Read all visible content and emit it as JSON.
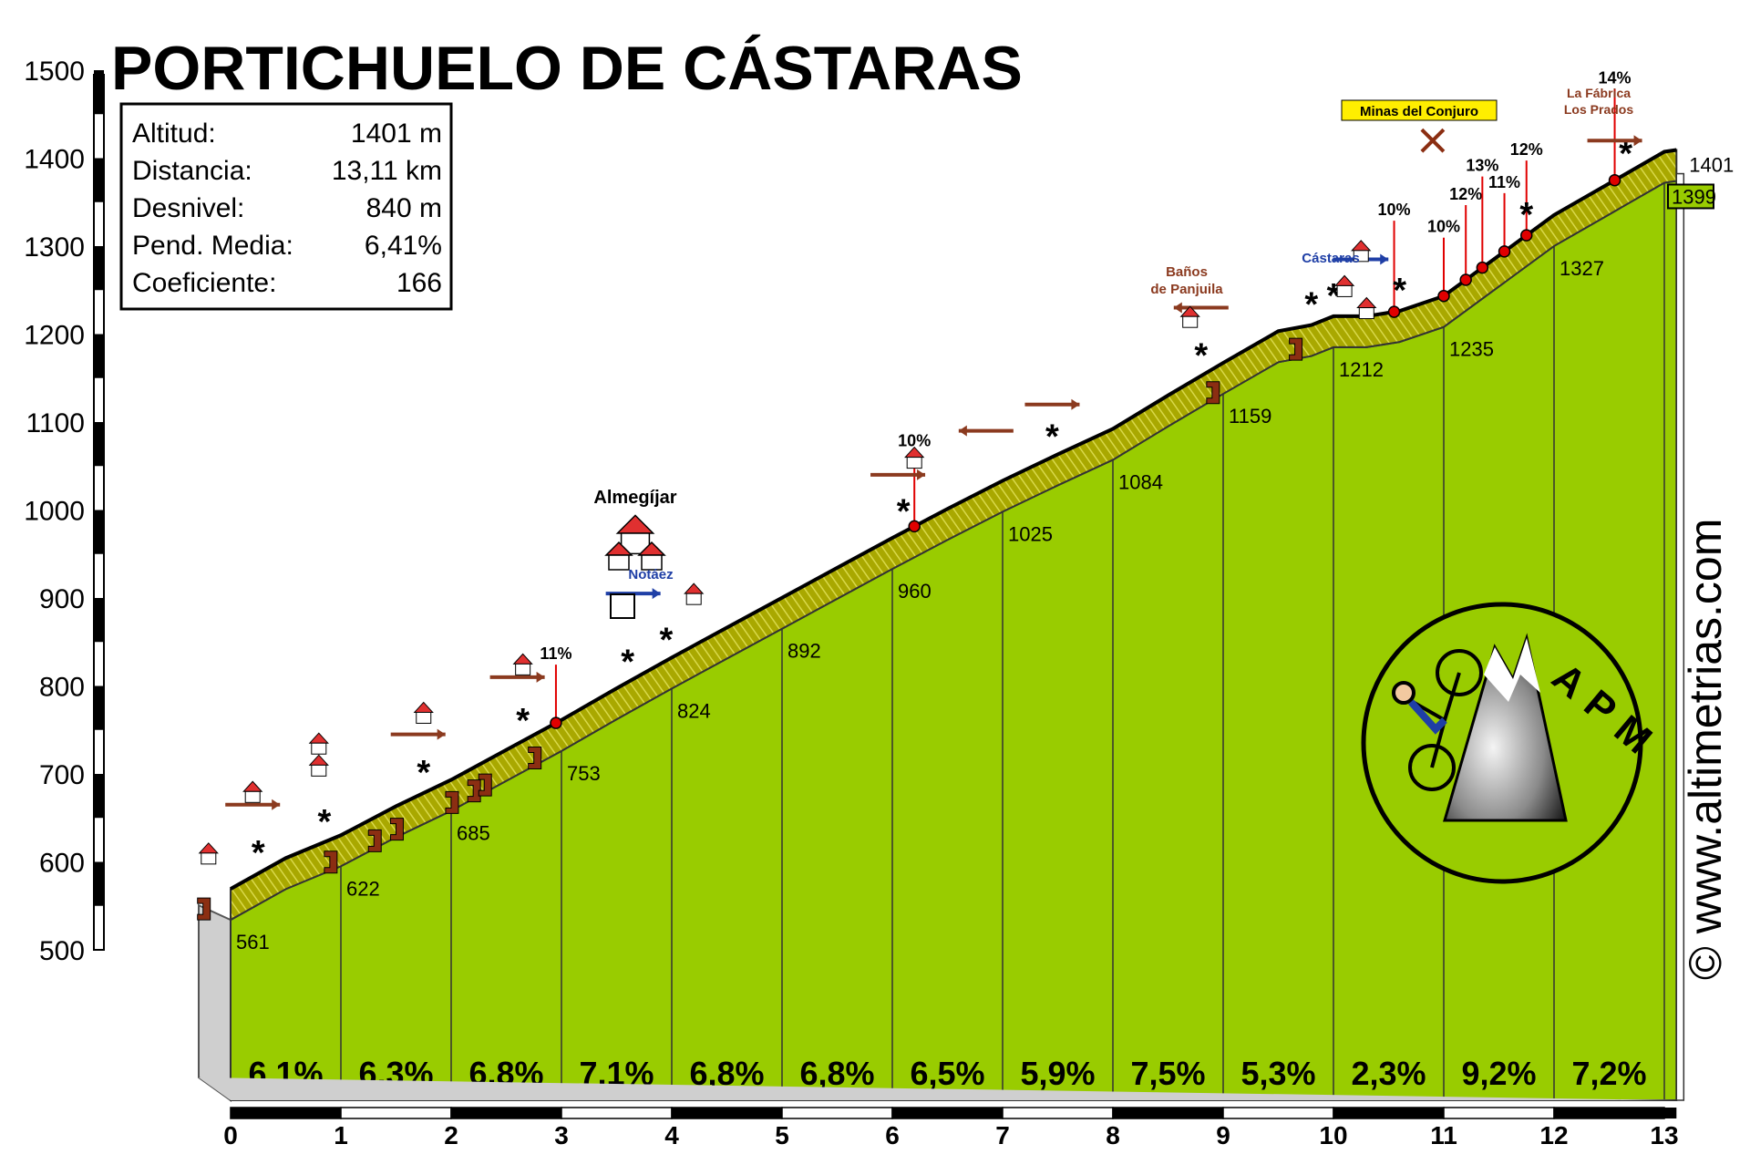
{
  "title": "PORTICHUELO DE CÁSTARAS",
  "watermark": "© www.altimetrias.com",
  "logo_text": "APM",
  "colors": {
    "fill": "#99cc00",
    "road": "#9c9c00",
    "road_light": "#dede00",
    "marker": "#8b2e12",
    "red": "#e00000",
    "arrow_brown": "#8b3a1f",
    "arrow_blue": "#1f3fa6",
    "arrow_grey": "#888888"
  },
  "stats": [
    {
      "label": "Altitud:",
      "value": "1401 m"
    },
    {
      "label": "Distancia:",
      "value": "13,11 km"
    },
    {
      "label": "Desnivel:",
      "value": "840 m"
    },
    {
      "label": "Pend. Media:",
      "value": "6,41%"
    },
    {
      "label": "Coeficiente:",
      "value": "166"
    }
  ],
  "places": [
    {
      "name": "Almegíjar",
      "km": 3.65
    },
    {
      "name": "Notáez",
      "km": 3.8
    },
    {
      "name": "Baños de Panjuila",
      "km": 8.8
    },
    {
      "name": "Cástaras",
      "km": 10.25
    },
    {
      "name": "Minas del Conjuro",
      "km": 11.4
    },
    {
      "name": "La Fábrica",
      "km": 12.6
    },
    {
      "name": "Los Prados",
      "km": 12.6
    }
  ],
  "chart_data": {
    "type": "area",
    "xlabel": "",
    "ylabel": "",
    "xlim": [
      0,
      13.11
    ],
    "ylim": [
      500,
      1500
    ],
    "x_ticks": [
      "0",
      "1",
      "2",
      "3",
      "4",
      "5",
      "6",
      "7",
      "8",
      "9",
      "10",
      "11",
      "12",
      "13"
    ],
    "y_ticks": [
      "500",
      "600",
      "700",
      "800",
      "900",
      "1000",
      "1100",
      "1200",
      "1300",
      "1400",
      "1500"
    ],
    "profile": [
      {
        "km": 0,
        "alt": 561
      },
      {
        "km": 0.5,
        "alt": 596
      },
      {
        "km": 1,
        "alt": 622
      },
      {
        "km": 1.5,
        "alt": 655
      },
      {
        "km": 2,
        "alt": 685
      },
      {
        "km": 2.5,
        "alt": 719
      },
      {
        "km": 3,
        "alt": 753
      },
      {
        "km": 3.5,
        "alt": 789
      },
      {
        "km": 4,
        "alt": 824
      },
      {
        "km": 4.5,
        "alt": 858
      },
      {
        "km": 5,
        "alt": 892
      },
      {
        "km": 5.5,
        "alt": 926
      },
      {
        "km": 6,
        "alt": 960
      },
      {
        "km": 6.5,
        "alt": 993
      },
      {
        "km": 7,
        "alt": 1025
      },
      {
        "km": 7.5,
        "alt": 1055
      },
      {
        "km": 8,
        "alt": 1084
      },
      {
        "km": 8.5,
        "alt": 1122
      },
      {
        "km": 9,
        "alt": 1159
      },
      {
        "km": 9.5,
        "alt": 1195
      },
      {
        "km": 9.8,
        "alt": 1202
      },
      {
        "km": 10,
        "alt": 1212
      },
      {
        "km": 10.3,
        "alt": 1212
      },
      {
        "km": 10.6,
        "alt": 1218
      },
      {
        "km": 11,
        "alt": 1235
      },
      {
        "km": 11.5,
        "alt": 1281
      },
      {
        "km": 12,
        "alt": 1327
      },
      {
        "km": 12.5,
        "alt": 1363
      },
      {
        "km": 13,
        "alt": 1399
      },
      {
        "km": 13.11,
        "alt": 1401
      }
    ],
    "point_labels": [
      {
        "km": 0,
        "text": "561"
      },
      {
        "km": 1,
        "text": "622"
      },
      {
        "km": 2,
        "text": "685"
      },
      {
        "km": 3,
        "text": "753"
      },
      {
        "km": 4,
        "text": "824"
      },
      {
        "km": 5,
        "text": "892"
      },
      {
        "km": 6,
        "text": "960"
      },
      {
        "km": 7,
        "text": "1025"
      },
      {
        "km": 8,
        "text": "1084"
      },
      {
        "km": 9,
        "text": "1159"
      },
      {
        "km": 10,
        "text": "1212"
      },
      {
        "km": 11,
        "text": "1235"
      },
      {
        "km": 12,
        "text": "1327"
      },
      {
        "km": 13,
        "text": "1399"
      },
      {
        "km": 13.11,
        "text": "1401"
      }
    ],
    "segment_gradients": [
      "6,1%",
      "6,3%",
      "6,8%",
      "7,1%",
      "6,8%",
      "6,8%",
      "6,5%",
      "5,9%",
      "7,5%",
      "5,3%",
      "2,3%",
      "9,2%",
      "7,2%"
    ],
    "ramp_labels": [
      {
        "km": 2.95,
        "text": "11%"
      },
      {
        "km": 6.2,
        "text": "10%"
      },
      {
        "km": 10.55,
        "text": "10%"
      },
      {
        "km": 11.0,
        "text": "10%"
      },
      {
        "km": 11.2,
        "text": "12%"
      },
      {
        "km": 11.35,
        "text": "13%"
      },
      {
        "km": 11.55,
        "text": "11%"
      },
      {
        "km": 11.75,
        "text": "12%"
      },
      {
        "km": 12.55,
        "text": "14%"
      }
    ],
    "grid": false,
    "legend": "none"
  }
}
